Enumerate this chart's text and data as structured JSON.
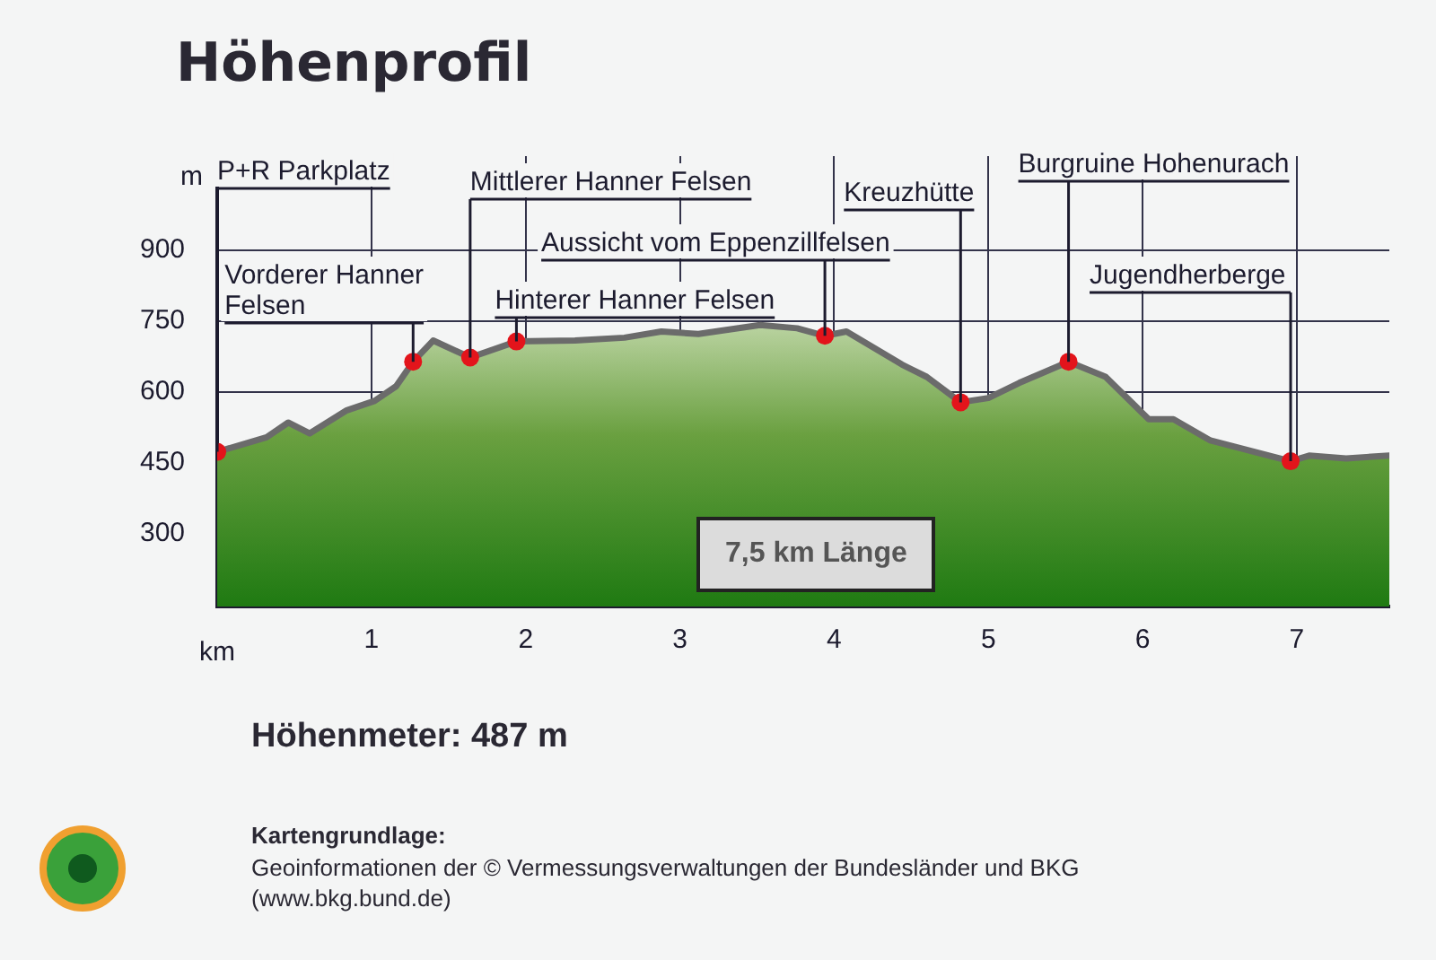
{
  "chart_data": {
    "type": "area",
    "title": "Höhenprofil",
    "xlabel": "km",
    "ylabel": "m",
    "xlim": [
      0,
      7.6
    ],
    "xticks": [
      1,
      2,
      3,
      4,
      5,
      6,
      7
    ],
    "ylim": [
      145,
      1100
    ],
    "yticks": [
      300,
      450,
      600,
      750,
      900
    ],
    "grid": true,
    "legend": false,
    "series": [
      {
        "color": "#6b6b6b",
        "marker": "none",
        "x": [
          0,
          0.32,
          0.46,
          0.6,
          0.84,
          1.02,
          1.16,
          1.27,
          1.4,
          1.64,
          1.94,
          2.32,
          2.64,
          2.88,
          3.12,
          3.52,
          3.76,
          3.94,
          4.08,
          4.44,
          4.6,
          4.82,
          5.0,
          5.2,
          5.52,
          5.76,
          6.04,
          6.2,
          6.44,
          6.96,
          7.08,
          7.32,
          7.6
        ],
        "values": [
          473,
          504,
          535,
          512,
          561,
          581,
          612,
          664,
          709,
          673,
          707,
          709,
          715,
          728,
          723,
          742,
          735,
          719,
          728,
          658,
          632,
          578,
          587,
          619,
          664,
          632,
          542,
          542,
          497,
          453,
          465,
          459,
          465
        ]
      },
      {
        "type": "scatter",
        "color": "#e3141b",
        "marker": "circle",
        "x": [
          0,
          1.27,
          1.64,
          1.94,
          3.94,
          4.82,
          5.52,
          6.96
        ],
        "values": [
          473,
          664,
          673,
          707,
          719,
          578,
          664,
          453
        ]
      }
    ],
    "annotations": [
      {
        "text": "P+R Parkplatz",
        "x": 0,
        "y": 473
      },
      {
        "text": "Vorderer Hanner Felsen",
        "x": 1.27,
        "y": 664
      },
      {
        "text": "Mittlerer Hanner Felsen",
        "x": 1.64,
        "y": 673
      },
      {
        "text": "Hinterer Hanner Felsen",
        "x": 1.94,
        "y": 707
      },
      {
        "text": "Aussicht vom Eppenzillfelsen",
        "x": 3.94,
        "y": 719
      },
      {
        "text": "Kreuzhütte",
        "x": 4.82,
        "y": 578
      },
      {
        "text": "Burgruine Hohenurach",
        "x": 5.52,
        "y": 664
      },
      {
        "text": "Jugendherberge",
        "x": 6.96,
        "y": 453
      },
      "7,5 km Länge",
      "Höhenmeter: 487 m",
      "Kartengrundlage:",
      "Geoinformationen der © Vermessungsverwaltungen der Bundesländer und BKG (www.bkg.bund.de)"
    ]
  }
}
